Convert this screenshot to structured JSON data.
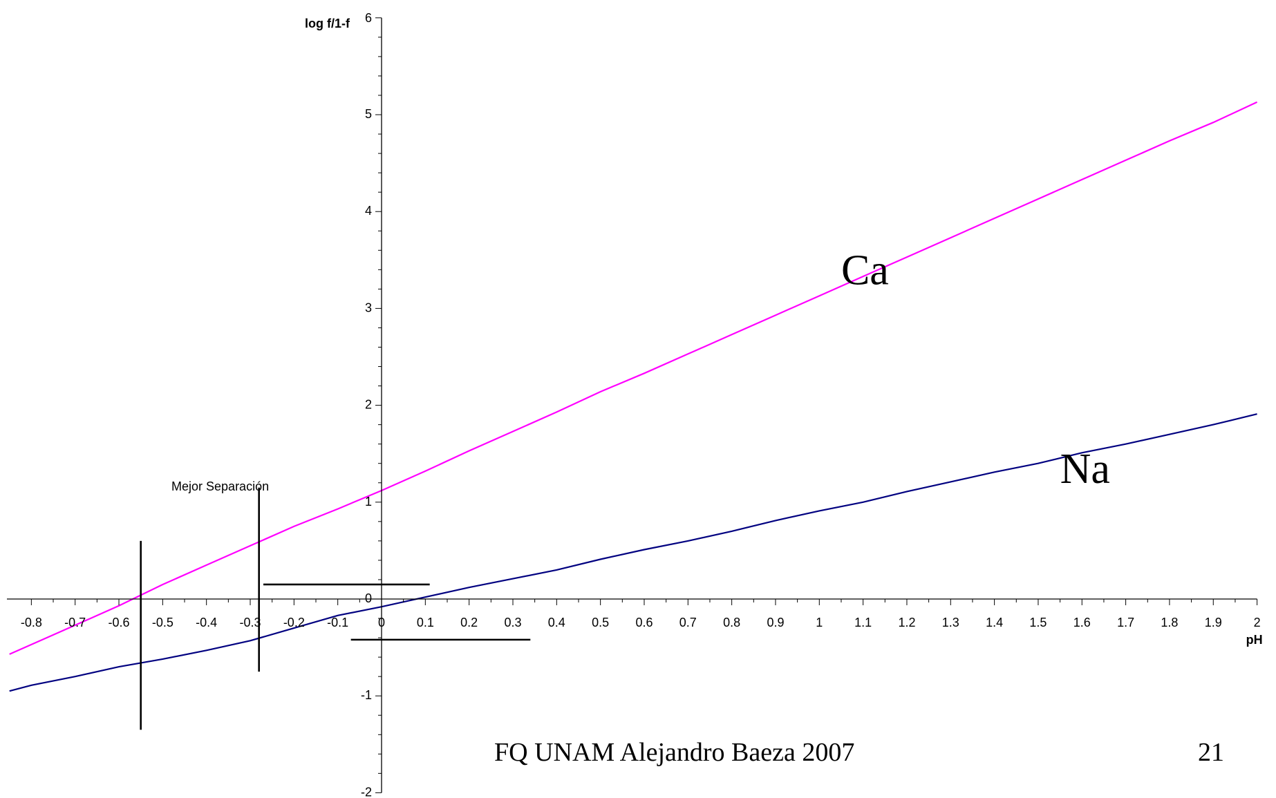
{
  "chart_data": {
    "type": "line",
    "xlabel": "pH",
    "ylabel": "log f/1-f",
    "xlim": [
      -0.85,
      2.0
    ],
    "ylim": [
      -2,
      6
    ],
    "x_ticks": [
      -0.8,
      -0.7,
      -0.6,
      -0.5,
      -0.4,
      -0.3,
      -0.2,
      -0.1,
      0,
      0.1,
      0.2,
      0.3,
      0.4,
      0.5,
      0.6,
      0.7,
      0.8,
      0.9,
      1,
      1.1,
      1.2,
      1.3,
      1.4,
      1.5,
      1.6,
      1.7,
      1.8,
      1.9,
      2
    ],
    "x_tick_labels": [
      "-0.8",
      "-0.7",
      "-0.6",
      "-0.5",
      "-0.4",
      "-0.3",
      "-0.2",
      "-0.1",
      "0",
      "0.1",
      "0.2",
      "0.3",
      "0.4",
      "0.5",
      "0.6",
      "0.7",
      "0.8",
      "0.9",
      "1",
      "1.1",
      "1.2",
      "1.3",
      "1.4",
      "1.5",
      "1.6",
      "1.7",
      "1.8",
      "1.9",
      "2"
    ],
    "y_ticks": [
      -2,
      -1,
      0,
      1,
      2,
      3,
      4,
      5,
      6
    ],
    "y_tick_labels": [
      "-2",
      "-1",
      "0",
      "1",
      "2",
      "3",
      "4",
      "5",
      "6"
    ],
    "grid": false,
    "series": [
      {
        "name": "Ca",
        "color": "#ff00ff",
        "x": [
          -0.85,
          -0.8,
          -0.7,
          -0.6,
          -0.5,
          -0.4,
          -0.3,
          -0.2,
          -0.1,
          0,
          0.1,
          0.2,
          0.3,
          0.4,
          0.5,
          0.6,
          0.7,
          0.8,
          0.9,
          1,
          1.1,
          1.2,
          1.3,
          1.4,
          1.5,
          1.6,
          1.7,
          1.8,
          1.9,
          2
        ],
        "y": [
          -0.57,
          -0.47,
          -0.27,
          -0.07,
          0.15,
          0.35,
          0.55,
          0.75,
          0.93,
          1.12,
          1.32,
          1.53,
          1.73,
          1.93,
          2.14,
          2.33,
          2.53,
          2.73,
          2.93,
          3.13,
          3.33,
          3.53,
          3.73,
          3.93,
          4.13,
          4.33,
          4.53,
          4.73,
          4.92,
          5.13
        ]
      },
      {
        "name": "Na",
        "color": "#000080",
        "x": [
          -0.85,
          -0.8,
          -0.7,
          -0.6,
          -0.5,
          -0.4,
          -0.3,
          -0.2,
          -0.1,
          0,
          0.1,
          0.2,
          0.3,
          0.4,
          0.5,
          0.6,
          0.7,
          0.8,
          0.9,
          1,
          1.1,
          1.2,
          1.3,
          1.4,
          1.5,
          1.6,
          1.7,
          1.8,
          1.9,
          2
        ],
        "y": [
          -0.95,
          -0.89,
          -0.8,
          -0.7,
          -0.62,
          -0.53,
          -0.43,
          -0.3,
          -0.17,
          -0.08,
          0.02,
          0.12,
          0.21,
          0.3,
          0.41,
          0.51,
          0.6,
          0.7,
          0.81,
          0.91,
          1.0,
          1.11,
          1.21,
          1.31,
          1.4,
          1.51,
          1.6,
          1.7,
          1.8,
          1.91
        ]
      }
    ],
    "series_labels": [
      {
        "text": "Ca",
        "x": 1.05,
        "y": 3.25
      },
      {
        "text": "Na",
        "x": 1.55,
        "y": 1.2
      }
    ],
    "annotation": {
      "text": "Mejor Separación",
      "x": -0.48,
      "y": 1.12
    },
    "marker_lines": [
      {
        "orientation": "vertical",
        "x": -0.55,
        "y_from": -1.35,
        "y_to": 0.6
      },
      {
        "orientation": "vertical",
        "x": -0.28,
        "y_from": -0.75,
        "y_to": 1.15
      },
      {
        "orientation": "horizontal",
        "y": 0.15,
        "x_from": -0.27,
        "x_to": 0.11
      },
      {
        "orientation": "horizontal",
        "y": -0.42,
        "x_from": -0.07,
        "x_to": 0.34
      }
    ]
  },
  "footer": {
    "credit": "FQ UNAM Alejandro Baeza 2007",
    "page_number": "21"
  }
}
